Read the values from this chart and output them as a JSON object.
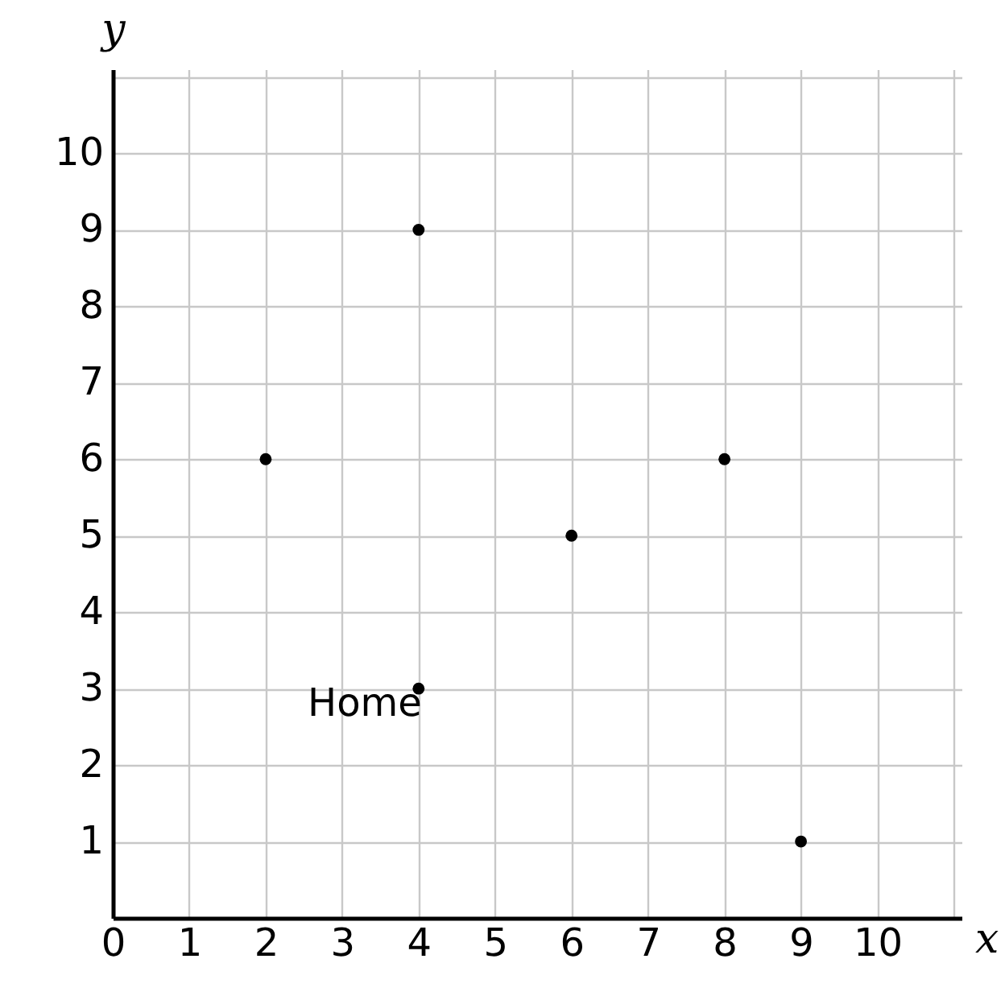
{
  "chart_data": {
    "type": "scatter",
    "xlabel": "x",
    "ylabel": "y",
    "x": [
      2,
      4,
      4,
      6,
      8,
      9
    ],
    "series": [
      {
        "color": "#000000",
        "values": [
          6,
          9,
          3,
          5,
          6,
          1
        ]
      }
    ],
    "annotations": [
      {
        "text": "Home",
        "x": 4,
        "y": 3
      }
    ],
    "xlim": [
      0,
      11.1
    ],
    "ylim": [
      0,
      11.1
    ],
    "xticks": [
      {
        "value": 0,
        "label": "0"
      },
      1,
      2,
      3,
      4,
      5,
      6,
      7,
      8,
      9,
      10,
      {
        "value": 11,
        "label": null
      }
    ],
    "yticks": [
      {
        "value": 0,
        "label": null
      },
      1,
      2,
      3,
      4,
      5,
      6,
      7,
      8,
      9,
      10,
      {
        "value": 11,
        "label": null
      }
    ],
    "grid": true,
    "marker": "circle",
    "legend": false
  }
}
